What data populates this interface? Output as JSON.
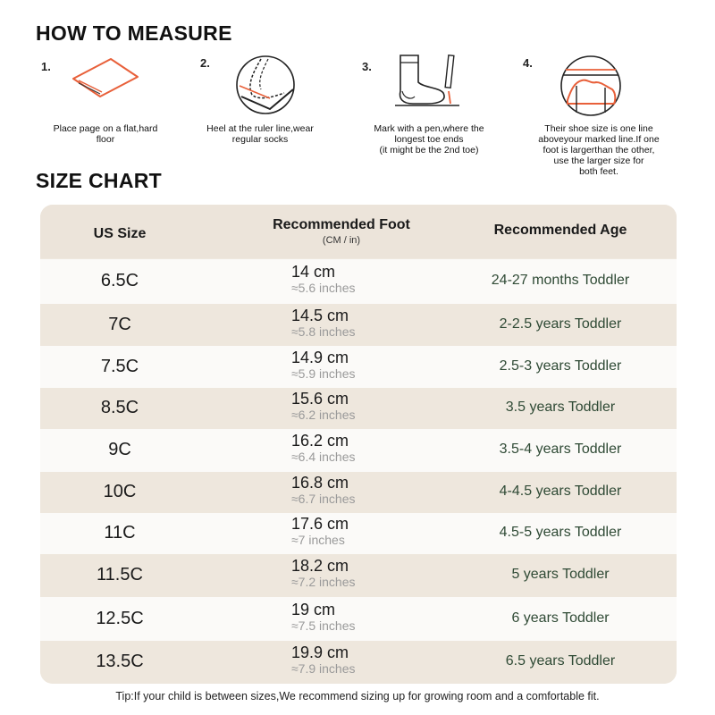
{
  "measure": {
    "title": "HOW TO MEASURE",
    "steps": [
      {
        "num": "1.",
        "icon": "paper-sheet-icon",
        "lines": [
          "Place page on a flat,hard",
          "floor"
        ]
      },
      {
        "num": "2.",
        "icon": "heel-on-ruler-icon",
        "lines": [
          "Heel at the ruler line,wear",
          "regular socks"
        ]
      },
      {
        "num": "3.",
        "icon": "sock-and-pen-icon",
        "lines": [
          "Mark with a pen,where the",
          "longest toe ends",
          "(it might be the 2nd toe)"
        ]
      },
      {
        "num": "4.",
        "icon": "toe-line-icon",
        "lines": [
          "Their shoe size is one line",
          "aboveyour marked line.If one",
          "foot is largerthan the other,",
          "use the larger size for",
          "both feet."
        ]
      }
    ]
  },
  "size_chart": {
    "title": "SIZE CHART",
    "headers": {
      "size": "US Size",
      "foot": "Recommended Foot",
      "foot_unit": "(CM / in)",
      "age": "Recommended Age"
    },
    "rows": [
      {
        "size": "6.5C",
        "cm": "14 cm",
        "inches": "≈5.6 inches",
        "age": "24-27 months Toddler"
      },
      {
        "size": "7C",
        "cm": "14.5 cm",
        "inches": "≈5.8 inches",
        "age": "2-2.5 years Toddler"
      },
      {
        "size": "7.5C",
        "cm": "14.9 cm",
        "inches": "≈5.9 inches",
        "age": "2.5-3 years Toddler"
      },
      {
        "size": "8.5C",
        "cm": "15.6 cm",
        "inches": "≈6.2 inches",
        "age": "3.5 years Toddler"
      },
      {
        "size": "9C",
        "cm": "16.2 cm",
        "inches": "≈6.4 inches",
        "age": "3.5-4 years Toddler"
      },
      {
        "size": "10C",
        "cm": "16.8 cm",
        "inches": "≈6.7 inches",
        "age": "4-4.5 years Toddler"
      },
      {
        "size": "11C",
        "cm": "17.6 cm",
        "inches": "≈7 inches",
        "age": "4.5-5 years Toddler"
      },
      {
        "size": "11.5C",
        "cm": "18.2 cm",
        "inches": "≈7.2 inches",
        "age": "5 years Toddler"
      },
      {
        "size": "12.5C",
        "cm": "19 cm",
        "inches": "≈7.5 inches",
        "age": "6 years Toddler"
      },
      {
        "size": "13.5C",
        "cm": "19.9 cm",
        "inches": "≈7.9 inches",
        "age": "6.5 years Toddler"
      }
    ]
  },
  "tip": "Tip:If your child is between sizes,We recommend sizing up for growing room and a comfortable fit.",
  "colors": {
    "accent": "#e8603a",
    "header_bg": "#ece4da",
    "row_light": "#fbfaf8",
    "row_dark": "#eee7dd",
    "age_text": "#2f4a35"
  }
}
